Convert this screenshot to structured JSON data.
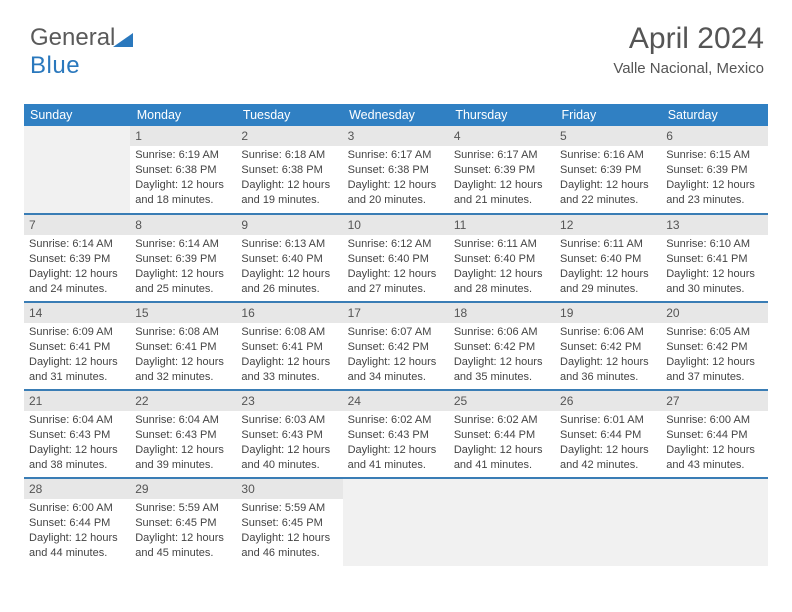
{
  "logo": {
    "part1": "General",
    "part2": "Blue"
  },
  "title": {
    "month": "April 2024",
    "location": "Valle Nacional, Mexico"
  },
  "header_bg": "#3080c3",
  "row_border": "#3a7db5",
  "daynum_bg": "#e7e7e7",
  "weekdays": [
    "Sunday",
    "Monday",
    "Tuesday",
    "Wednesday",
    "Thursday",
    "Friday",
    "Saturday"
  ],
  "weeks": [
    [
      null,
      {
        "n": "1",
        "sr": "Sunrise: 6:19 AM",
        "ss": "Sunset: 6:38 PM",
        "d1": "Daylight: 12 hours",
        "d2": "and 18 minutes."
      },
      {
        "n": "2",
        "sr": "Sunrise: 6:18 AM",
        "ss": "Sunset: 6:38 PM",
        "d1": "Daylight: 12 hours",
        "d2": "and 19 minutes."
      },
      {
        "n": "3",
        "sr": "Sunrise: 6:17 AM",
        "ss": "Sunset: 6:38 PM",
        "d1": "Daylight: 12 hours",
        "d2": "and 20 minutes."
      },
      {
        "n": "4",
        "sr": "Sunrise: 6:17 AM",
        "ss": "Sunset: 6:39 PM",
        "d1": "Daylight: 12 hours",
        "d2": "and 21 minutes."
      },
      {
        "n": "5",
        "sr": "Sunrise: 6:16 AM",
        "ss": "Sunset: 6:39 PM",
        "d1": "Daylight: 12 hours",
        "d2": "and 22 minutes."
      },
      {
        "n": "6",
        "sr": "Sunrise: 6:15 AM",
        "ss": "Sunset: 6:39 PM",
        "d1": "Daylight: 12 hours",
        "d2": "and 23 minutes."
      }
    ],
    [
      {
        "n": "7",
        "sr": "Sunrise: 6:14 AM",
        "ss": "Sunset: 6:39 PM",
        "d1": "Daylight: 12 hours",
        "d2": "and 24 minutes."
      },
      {
        "n": "8",
        "sr": "Sunrise: 6:14 AM",
        "ss": "Sunset: 6:39 PM",
        "d1": "Daylight: 12 hours",
        "d2": "and 25 minutes."
      },
      {
        "n": "9",
        "sr": "Sunrise: 6:13 AM",
        "ss": "Sunset: 6:40 PM",
        "d1": "Daylight: 12 hours",
        "d2": "and 26 minutes."
      },
      {
        "n": "10",
        "sr": "Sunrise: 6:12 AM",
        "ss": "Sunset: 6:40 PM",
        "d1": "Daylight: 12 hours",
        "d2": "and 27 minutes."
      },
      {
        "n": "11",
        "sr": "Sunrise: 6:11 AM",
        "ss": "Sunset: 6:40 PM",
        "d1": "Daylight: 12 hours",
        "d2": "and 28 minutes."
      },
      {
        "n": "12",
        "sr": "Sunrise: 6:11 AM",
        "ss": "Sunset: 6:40 PM",
        "d1": "Daylight: 12 hours",
        "d2": "and 29 minutes."
      },
      {
        "n": "13",
        "sr": "Sunrise: 6:10 AM",
        "ss": "Sunset: 6:41 PM",
        "d1": "Daylight: 12 hours",
        "d2": "and 30 minutes."
      }
    ],
    [
      {
        "n": "14",
        "sr": "Sunrise: 6:09 AM",
        "ss": "Sunset: 6:41 PM",
        "d1": "Daylight: 12 hours",
        "d2": "and 31 minutes."
      },
      {
        "n": "15",
        "sr": "Sunrise: 6:08 AM",
        "ss": "Sunset: 6:41 PM",
        "d1": "Daylight: 12 hours",
        "d2": "and 32 minutes."
      },
      {
        "n": "16",
        "sr": "Sunrise: 6:08 AM",
        "ss": "Sunset: 6:41 PM",
        "d1": "Daylight: 12 hours",
        "d2": "and 33 minutes."
      },
      {
        "n": "17",
        "sr": "Sunrise: 6:07 AM",
        "ss": "Sunset: 6:42 PM",
        "d1": "Daylight: 12 hours",
        "d2": "and 34 minutes."
      },
      {
        "n": "18",
        "sr": "Sunrise: 6:06 AM",
        "ss": "Sunset: 6:42 PM",
        "d1": "Daylight: 12 hours",
        "d2": "and 35 minutes."
      },
      {
        "n": "19",
        "sr": "Sunrise: 6:06 AM",
        "ss": "Sunset: 6:42 PM",
        "d1": "Daylight: 12 hours",
        "d2": "and 36 minutes."
      },
      {
        "n": "20",
        "sr": "Sunrise: 6:05 AM",
        "ss": "Sunset: 6:42 PM",
        "d1": "Daylight: 12 hours",
        "d2": "and 37 minutes."
      }
    ],
    [
      {
        "n": "21",
        "sr": "Sunrise: 6:04 AM",
        "ss": "Sunset: 6:43 PM",
        "d1": "Daylight: 12 hours",
        "d2": "and 38 minutes."
      },
      {
        "n": "22",
        "sr": "Sunrise: 6:04 AM",
        "ss": "Sunset: 6:43 PM",
        "d1": "Daylight: 12 hours",
        "d2": "and 39 minutes."
      },
      {
        "n": "23",
        "sr": "Sunrise: 6:03 AM",
        "ss": "Sunset: 6:43 PM",
        "d1": "Daylight: 12 hours",
        "d2": "and 40 minutes."
      },
      {
        "n": "24",
        "sr": "Sunrise: 6:02 AM",
        "ss": "Sunset: 6:43 PM",
        "d1": "Daylight: 12 hours",
        "d2": "and 41 minutes."
      },
      {
        "n": "25",
        "sr": "Sunrise: 6:02 AM",
        "ss": "Sunset: 6:44 PM",
        "d1": "Daylight: 12 hours",
        "d2": "and 41 minutes."
      },
      {
        "n": "26",
        "sr": "Sunrise: 6:01 AM",
        "ss": "Sunset: 6:44 PM",
        "d1": "Daylight: 12 hours",
        "d2": "and 42 minutes."
      },
      {
        "n": "27",
        "sr": "Sunrise: 6:00 AM",
        "ss": "Sunset: 6:44 PM",
        "d1": "Daylight: 12 hours",
        "d2": "and 43 minutes."
      }
    ],
    [
      {
        "n": "28",
        "sr": "Sunrise: 6:00 AM",
        "ss": "Sunset: 6:44 PM",
        "d1": "Daylight: 12 hours",
        "d2": "and 44 minutes."
      },
      {
        "n": "29",
        "sr": "Sunrise: 5:59 AM",
        "ss": "Sunset: 6:45 PM",
        "d1": "Daylight: 12 hours",
        "d2": "and 45 minutes."
      },
      {
        "n": "30",
        "sr": "Sunrise: 5:59 AM",
        "ss": "Sunset: 6:45 PM",
        "d1": "Daylight: 12 hours",
        "d2": "and 46 minutes."
      },
      null,
      null,
      null,
      null
    ]
  ]
}
